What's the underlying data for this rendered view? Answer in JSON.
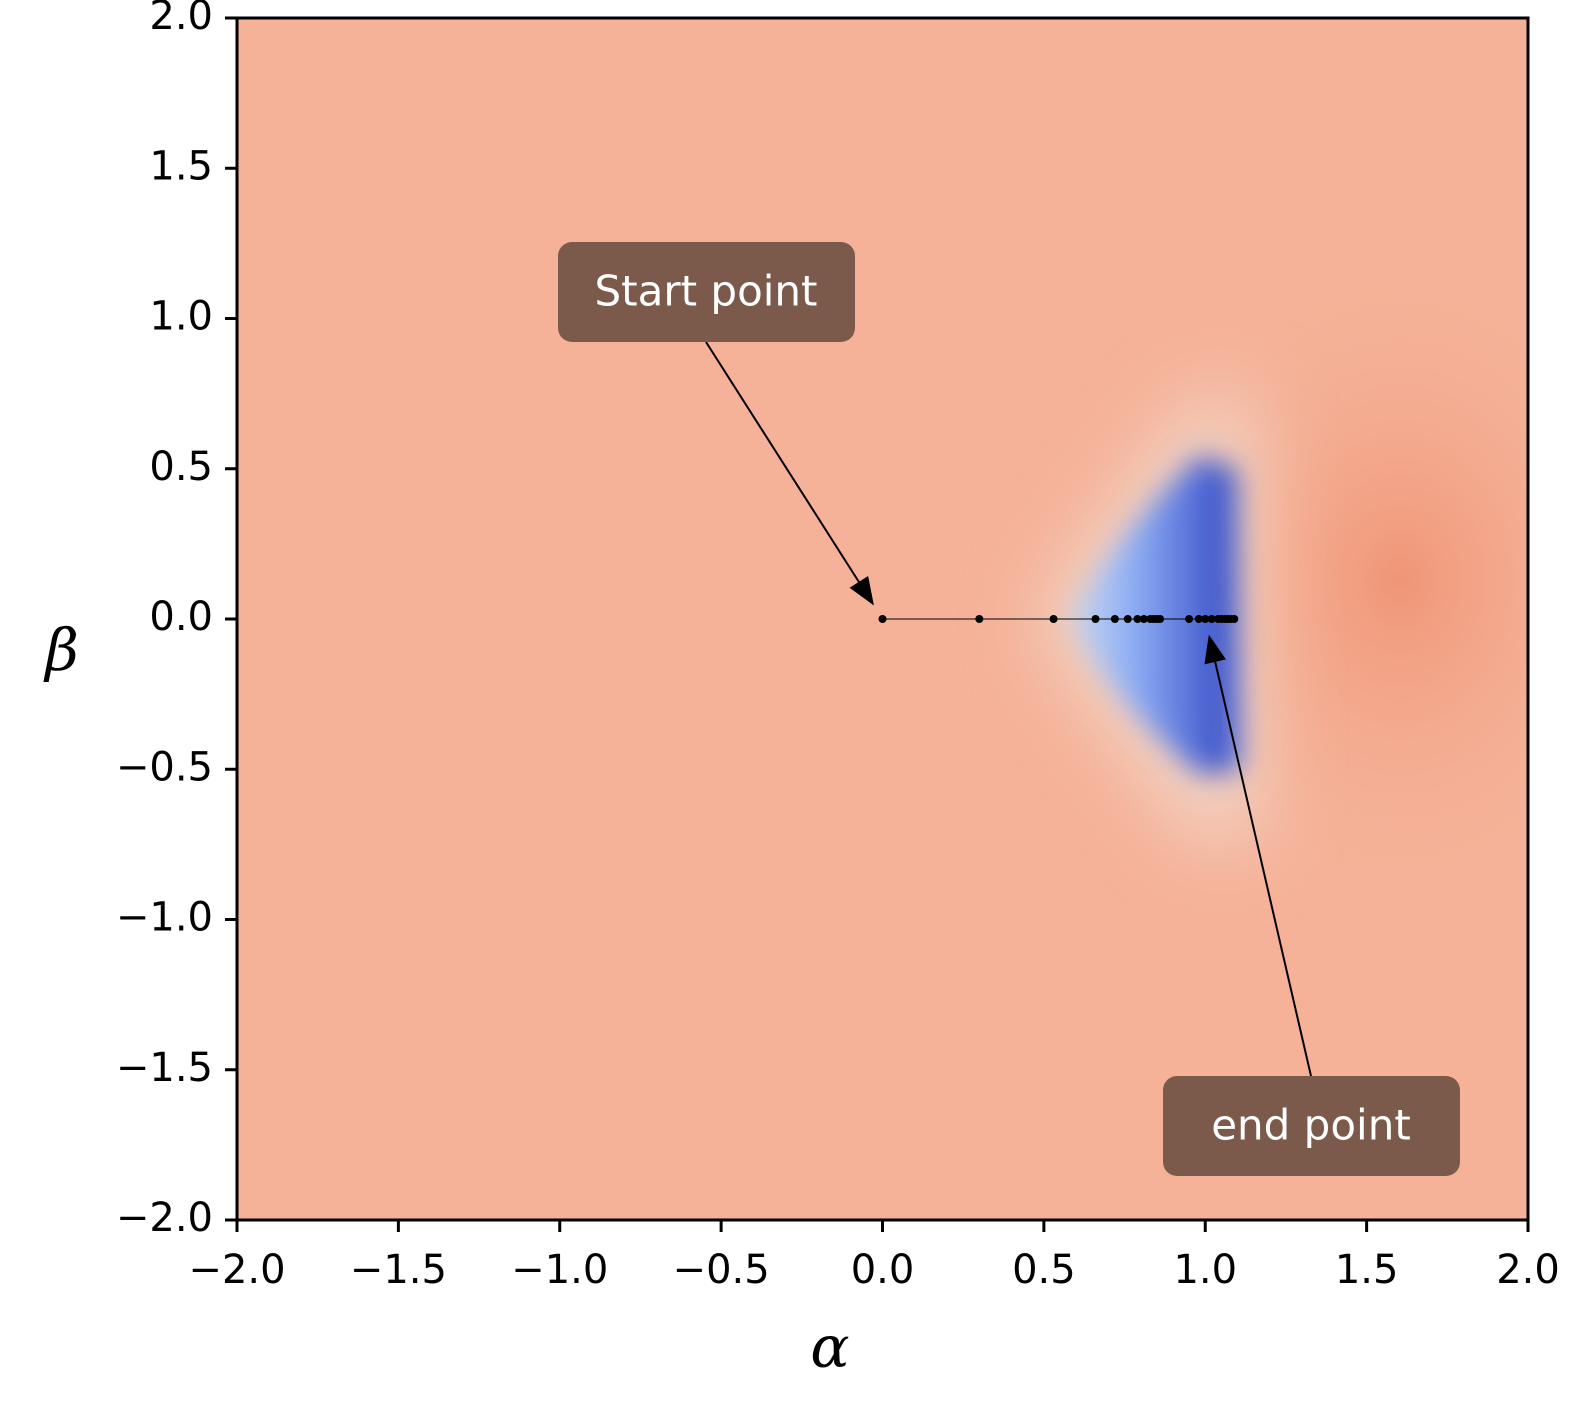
{
  "chart_data": {
    "type": "line",
    "xlabel": "α",
    "ylabel": "β",
    "xlim": [
      -2,
      2
    ],
    "ylim": [
      -2,
      2
    ],
    "xticks": [
      {
        "value": -2,
        "label": "−2.0"
      },
      {
        "value": -1.5,
        "label": "−1.5"
      },
      {
        "value": -1,
        "label": "−1.0"
      },
      {
        "value": -0.5,
        "label": "−0.5"
      },
      {
        "value": 0,
        "label": "0.0"
      },
      {
        "value": 0.5,
        "label": "0.5"
      },
      {
        "value": 1,
        "label": "1.0"
      },
      {
        "value": 1.5,
        "label": "1.5"
      },
      {
        "value": 2,
        "label": "2.0"
      }
    ],
    "yticks": [
      {
        "value": -2,
        "label": "−2.0"
      },
      {
        "value": -1.5,
        "label": "−1.5"
      },
      {
        "value": -1,
        "label": "−1.0"
      },
      {
        "value": -0.5,
        "label": "−0.5"
      },
      {
        "value": 0,
        "label": "0.0"
      },
      {
        "value": 0.5,
        "label": "0.5"
      },
      {
        "value": 1,
        "label": "1.0"
      },
      {
        "value": 1.5,
        "label": "1.5"
      },
      {
        "value": 2,
        "label": "2.0"
      }
    ],
    "x": [
      0,
      0.3,
      0.53,
      0.66,
      0.72,
      0.76,
      0.79,
      0.81,
      0.83,
      0.84,
      0.85,
      0.86,
      0.95,
      0.98,
      1.0,
      1.02,
      1.04,
      1.05,
      1.06,
      1.07,
      1.08,
      1.09
    ],
    "series": [
      {
        "color": "#000000",
        "values": [
          0,
          0,
          0,
          0,
          0,
          0,
          0,
          0,
          0,
          0,
          0,
          0,
          0,
          0,
          0,
          0,
          0,
          0,
          0,
          0,
          0,
          0
        ]
      }
    ],
    "annotations": [
      {
        "text": "Start point",
        "xy": [
          0,
          0
        ]
      },
      {
        "text": "end point",
        "xy": [
          1.0,
          0
        ]
      }
    ]
  }
}
